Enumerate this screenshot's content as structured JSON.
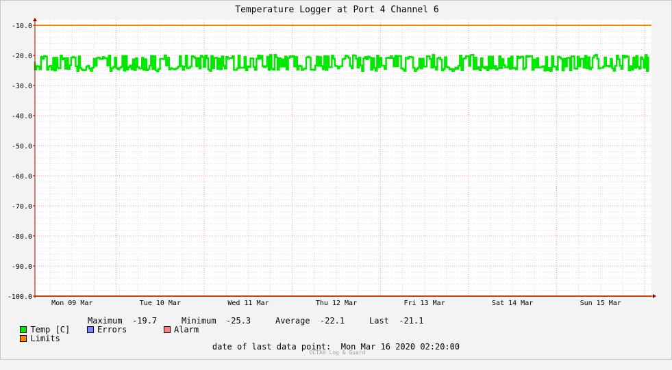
{
  "chart_data": {
    "type": "line",
    "title": "Temperature Logger at Port 4 Channel 6",
    "ylim": [
      -100,
      -10
    ],
    "y_ticks": [
      "-10.0",
      "-20.0",
      "-30.0",
      "-40.0",
      "-50.0",
      "-60.0",
      "-70.0",
      "-80.0",
      "-90.0",
      "-100.0"
    ],
    "x_ticks": [
      "Mon 09 Mar",
      "Tue 10 Mar",
      "Wed 11 Mar",
      "Thu 12 Mar",
      "Fri 13 Mar",
      "Sat 14 Mar",
      "Sun 15 Mar"
    ],
    "x_range": [
      "2020-03-09",
      "2020-03-16"
    ],
    "series": [
      {
        "name": "Temp [C]",
        "color": "#00e800",
        "band_low": -25.3,
        "band_high": -19.7,
        "center": -22.1
      },
      {
        "name": "Limits",
        "color": "#ff7f00",
        "values": [
          -10,
          -100
        ]
      }
    ],
    "grid": true
  },
  "legend": {
    "temp_label": "Temp [C]",
    "max_label": "Maximum",
    "max_value": "-19.7",
    "min_label": "Minimum",
    "min_value": "-25.3",
    "avg_label": "Average",
    "avg_value": "-22.1",
    "last_label": "Last",
    "last_value": "-21.1",
    "limits_label": "Limits",
    "errors_label": "Errors",
    "alarm_label": "Alarm",
    "colors": {
      "temp": "#00e800",
      "limits": "#ff7f00",
      "errors": "#7f7fff",
      "alarm": "#ff7f7f"
    }
  },
  "footer": {
    "label": "date of last data point:",
    "value": "Mon Mar 16 2020 02:20:00",
    "credit": "OCTA® Log & Guard"
  }
}
